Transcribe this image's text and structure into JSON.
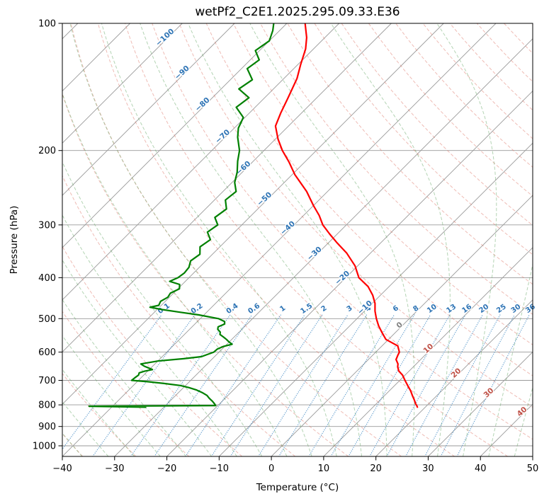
{
  "chart_data": {
    "type": "line",
    "diagram": "skew-t-log-p-sounding",
    "title": "wetPf2_C2E1.2025.295.09.33.E36",
    "xlabel": "Temperature (°C)",
    "ylabel": "Pressure (hPa)",
    "x_axis": {
      "min": -40,
      "max": 50,
      "ticks": [
        -40,
        -30,
        -20,
        -10,
        0,
        10,
        20,
        30,
        40,
        50
      ]
    },
    "y_axis": {
      "scale": "log",
      "top": 100,
      "gridline_ticks": [
        100,
        200,
        300,
        400,
        500,
        600,
        700,
        800,
        900,
        1000
      ]
    },
    "skew_degrees": 45,
    "series": [
      {
        "name": "temperature",
        "color": "#ff0000",
        "points": [
          [
            100,
            -76.5
          ],
          [
            108,
            -73.5
          ],
          [
            115,
            -71.5
          ],
          [
            125,
            -69.5
          ],
          [
            135,
            -67.5
          ],
          [
            150,
            -65.5
          ],
          [
            163,
            -64
          ],
          [
            175,
            -62.5
          ],
          [
            188,
            -59.5
          ],
          [
            200,
            -56.5
          ],
          [
            213,
            -53
          ],
          [
            228,
            -49.5
          ],
          [
            250,
            -44
          ],
          [
            270,
            -40
          ],
          [
            285,
            -37
          ],
          [
            300,
            -34.5
          ],
          [
            315,
            -31.5
          ],
          [
            330,
            -28.5
          ],
          [
            350,
            -24.5
          ],
          [
            375,
            -20.5
          ],
          [
            400,
            -17.5
          ],
          [
            420,
            -14
          ],
          [
            440,
            -11.5
          ],
          [
            460,
            -9.5
          ],
          [
            480,
            -8
          ],
          [
            500,
            -6.3
          ],
          [
            520,
            -4.5
          ],
          [
            540,
            -2.5
          ],
          [
            560,
            -0.5
          ],
          [
            580,
            3
          ],
          [
            600,
            4.5
          ],
          [
            610,
            4.8
          ],
          [
            625,
            5.3
          ],
          [
            640,
            6.5
          ],
          [
            650,
            7
          ],
          [
            665,
            8
          ],
          [
            680,
            9.5
          ],
          [
            700,
            11
          ],
          [
            720,
            12.5
          ],
          [
            740,
            14
          ],
          [
            760,
            15.3
          ],
          [
            780,
            16.6
          ],
          [
            795,
            17.5
          ],
          [
            805,
            18.2
          ],
          [
            810,
            18.5
          ]
        ]
      },
      {
        "name": "dewpoint",
        "color": "#008000",
        "points": [
          [
            100,
            -82.5
          ],
          [
            104,
            -81.3
          ],
          [
            110,
            -80
          ],
          [
            116,
            -80.8
          ],
          [
            122,
            -78.3
          ],
          [
            128,
            -78.9
          ],
          [
            136,
            -75.8
          ],
          [
            143,
            -76.6
          ],
          [
            150,
            -73
          ],
          [
            158,
            -73.6
          ],
          [
            167,
            -70.3
          ],
          [
            177,
            -69.2
          ],
          [
            186,
            -67.6
          ],
          [
            200,
            -64.7
          ],
          [
            212,
            -63
          ],
          [
            225,
            -61
          ],
          [
            238,
            -59.5
          ],
          [
            250,
            -57.5
          ],
          [
            262,
            -57.9
          ],
          [
            275,
            -56
          ],
          [
            288,
            -56.6
          ],
          [
            300,
            -54.6
          ],
          [
            312,
            -55.2
          ],
          [
            325,
            -53.2
          ],
          [
            338,
            -53.8
          ],
          [
            352,
            -52.4
          ],
          [
            365,
            -52.9
          ],
          [
            378,
            -52
          ],
          [
            390,
            -51.8
          ],
          [
            400,
            -52.1
          ],
          [
            408,
            -53
          ],
          [
            415,
            -50.5
          ],
          [
            425,
            -49.7
          ],
          [
            435,
            -50.6
          ],
          [
            445,
            -50.3
          ],
          [
            455,
            -50.9
          ],
          [
            465,
            -50.5
          ],
          [
            470,
            -51.8
          ],
          [
            476,
            -49
          ],
          [
            483,
            -45
          ],
          [
            490,
            -41
          ],
          [
            500,
            -36.5
          ],
          [
            508,
            -34.8
          ],
          [
            515,
            -34.3
          ],
          [
            523,
            -35
          ],
          [
            530,
            -34.6
          ],
          [
            538,
            -33.6
          ],
          [
            545,
            -33.2
          ],
          [
            553,
            -32
          ],
          [
            560,
            -31
          ],
          [
            568,
            -30
          ],
          [
            575,
            -29
          ],
          [
            582,
            -30.3
          ],
          [
            590,
            -30.9
          ],
          [
            600,
            -31
          ],
          [
            608,
            -31.8
          ],
          [
            615,
            -32.5
          ],
          [
            622,
            -35.5
          ],
          [
            630,
            -40
          ],
          [
            640,
            -42.7
          ],
          [
            648,
            -41.6
          ],
          [
            655,
            -40.3
          ],
          [
            660,
            -39.4
          ],
          [
            666,
            -40.6
          ],
          [
            672,
            -41.3
          ],
          [
            680,
            -41
          ],
          [
            690,
            -41.2
          ],
          [
            700,
            -41.3
          ],
          [
            705,
            -38
          ],
          [
            712,
            -34.5
          ],
          [
            720,
            -31
          ],
          [
            728,
            -29
          ],
          [
            738,
            -27
          ],
          [
            748,
            -25.5
          ],
          [
            760,
            -24
          ],
          [
            772,
            -23
          ],
          [
            785,
            -21.8
          ],
          [
            795,
            -21
          ],
          [
            803,
            -20.4
          ],
          [
            806,
            -44.5
          ],
          [
            810,
            -33.5
          ]
        ]
      }
    ],
    "reference_lines": {
      "isotherms": {
        "start": -160,
        "end": 50,
        "step": 10,
        "color": "#9a9a9a"
      },
      "isotherm_labels": [
        {
          "t": -100,
          "p": 109
        },
        {
          "t": -90,
          "p": 132
        },
        {
          "t": -80,
          "p": 157
        },
        {
          "t": -70,
          "p": 187
        },
        {
          "t": -60,
          "p": 222
        },
        {
          "t": -50,
          "p": 263
        },
        {
          "t": -40,
          "p": 308
        },
        {
          "t": -30,
          "p": 354
        },
        {
          "t": -20,
          "p": 404
        },
        {
          "t": -10,
          "p": 475
        },
        {
          "t": 0,
          "p": 523
        },
        {
          "t": 10,
          "p": 594
        },
        {
          "t": 20,
          "p": 679
        },
        {
          "t": 30,
          "p": 756
        },
        {
          "t": 40,
          "p": 838
        }
      ],
      "isotherm_label_colors": {
        "negative": "#2e74b5",
        "zero": "#808080",
        "positive": "#bf5046"
      },
      "dry_adiabats": {
        "theta_start": -40,
        "theta_end": 190,
        "step": 10,
        "color": "#e0796b"
      },
      "moist_adiabats": {
        "t0_start": -40,
        "t0_end": 50,
        "step": 5,
        "color": "#6aa96a"
      },
      "mixing_ratio": {
        "values": [
          0.1,
          0.2,
          0.4,
          0.6,
          1,
          1.5,
          2,
          3,
          4,
          6,
          8,
          10,
          13,
          16,
          20,
          25,
          30,
          36
        ],
        "label_pressure": 478,
        "line_end_pressure": 490,
        "color": "#4a8fc7",
        "label_color": "#2e74b5"
      }
    },
    "grid_color": "#9a9a9a",
    "frame_color": "#000000"
  }
}
